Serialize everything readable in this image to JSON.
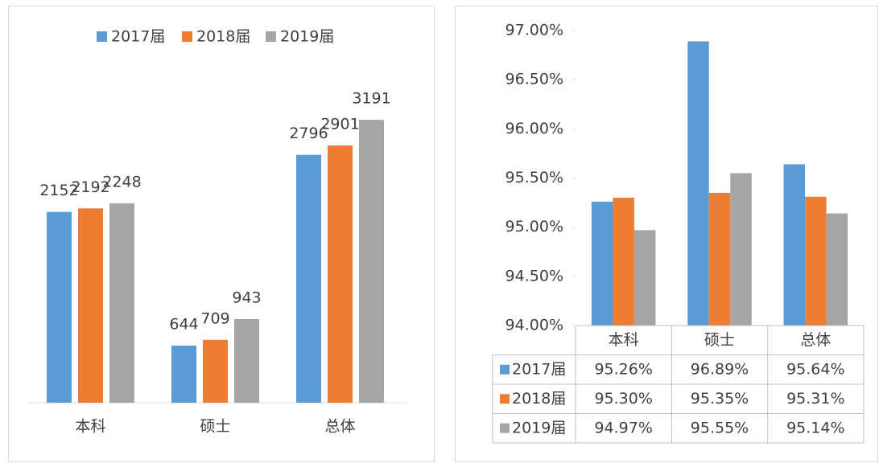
{
  "chart_data": [
    {
      "type": "bar",
      "categories": [
        "本科",
        "硕士",
        "总体"
      ],
      "series": [
        {
          "name": "2017届",
          "color": "#5b9bd5",
          "values": [
            2152,
            644,
            2796
          ]
        },
        {
          "name": "2018届",
          "color": "#ed7d31",
          "values": [
            2192,
            709,
            2901
          ]
        },
        {
          "name": "2019届",
          "color": "#a5a5a5",
          "values": [
            2248,
            943,
            3191
          ]
        }
      ],
      "ylim": [
        0,
        3500
      ],
      "legend": "top"
    },
    {
      "type": "bar-table",
      "categories": [
        "本科",
        "硕士",
        "总体"
      ],
      "series": [
        {
          "name": "2017届",
          "color": "#5b9bd5",
          "values": [
            95.26,
            96.89,
            95.64
          ],
          "value_labels": [
            "95.26%",
            "96.89%",
            "95.64%"
          ]
        },
        {
          "name": "2018届",
          "color": "#ed7d31",
          "values": [
            95.3,
            95.35,
            95.31
          ],
          "value_labels": [
            "95.30%",
            "95.35%",
            "95.31%"
          ]
        },
        {
          "name": "2019届",
          "color": "#a5a5a5",
          "values": [
            94.97,
            95.55,
            95.14
          ],
          "value_labels": [
            "94.97%",
            "95.55%",
            "95.14%"
          ]
        }
      ],
      "ylim": [
        94,
        97
      ],
      "yticks": [
        {
          "value": 94,
          "label": "94.00%"
        },
        {
          "value": 94.5,
          "label": "94.50%"
        },
        {
          "value": 95,
          "label": "95.00%"
        },
        {
          "value": 95.5,
          "label": "95.50%"
        },
        {
          "value": 96,
          "label": "96.00%"
        },
        {
          "value": 96.5,
          "label": "96.50%"
        },
        {
          "value": 97,
          "label": "97.00%"
        }
      ]
    }
  ]
}
